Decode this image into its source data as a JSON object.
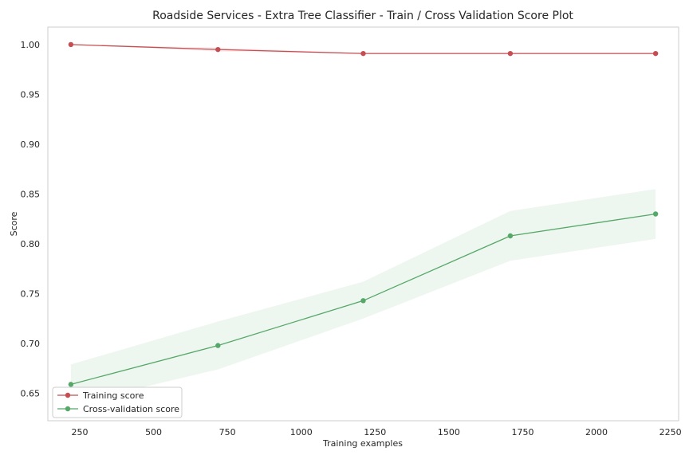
{
  "chart_data": {
    "type": "line",
    "title": "Roadside Services - Extra Tree Classifier - Train / Cross Validation Score Plot",
    "xlabel": "Training examples",
    "ylabel": "Score",
    "xlim": [
      142,
      2278
    ],
    "ylim": [
      0.6225,
      1.0175
    ],
    "xticks": [
      250,
      500,
      750,
      1000,
      1250,
      1500,
      1750,
      2000,
      2250
    ],
    "yticks": [
      0.65,
      0.7,
      0.75,
      0.8,
      0.85,
      0.9,
      0.95,
      1.0
    ],
    "x": [
      220,
      718,
      1210,
      1708,
      2200
    ],
    "series": [
      {
        "name": "Training score",
        "color": "#c44e52",
        "values": [
          1.0,
          0.995,
          0.991,
          0.991,
          0.991
        ],
        "lower": [
          1.0,
          0.993,
          0.9905,
          0.9905,
          0.9905
        ],
        "upper": [
          1.0,
          0.997,
          0.9915,
          0.9915,
          0.9915
        ]
      },
      {
        "name": "Cross-validation score",
        "color": "#55a868",
        "values": [
          0.659,
          0.698,
          0.743,
          0.808,
          0.83
        ],
        "lower": [
          0.639,
          0.674,
          0.725,
          0.783,
          0.805
        ],
        "upper": [
          0.679,
          0.722,
          0.762,
          0.833,
          0.855
        ]
      }
    ],
    "grid": false,
    "legend_position": "lower-left",
    "colors": {
      "axis": "#cccccc",
      "text": "#262626"
    }
  }
}
